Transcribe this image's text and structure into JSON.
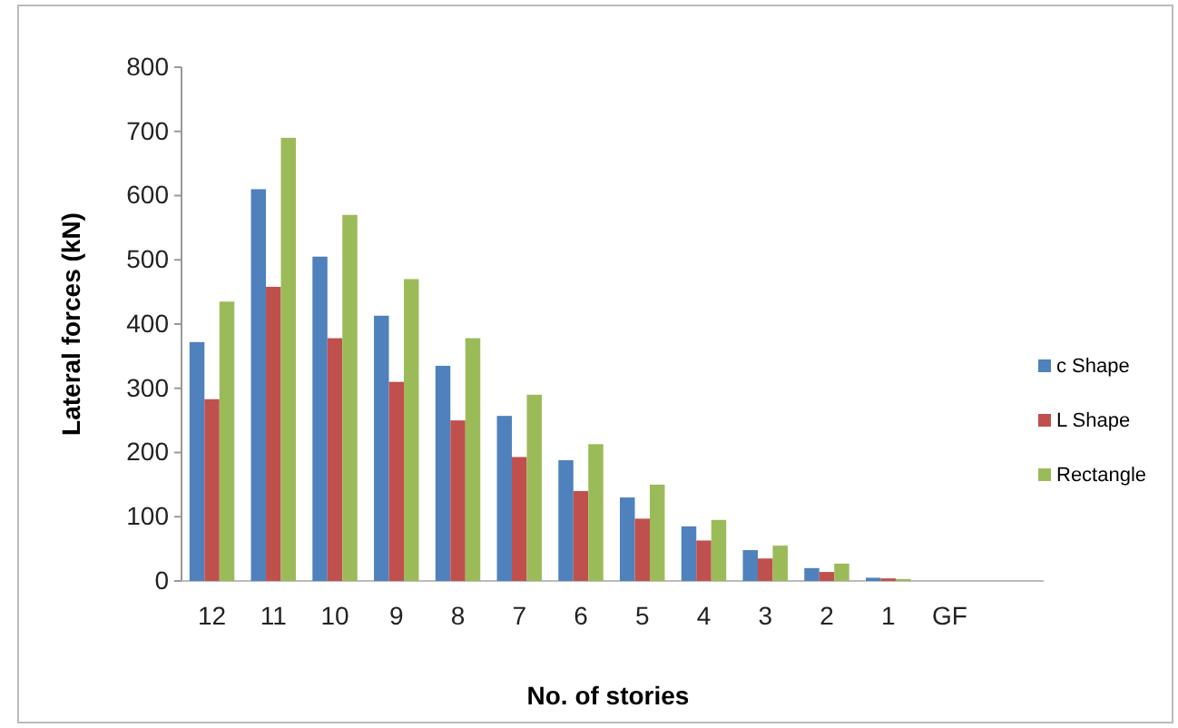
{
  "chart_data": {
    "type": "bar",
    "xlabel": "No. of stories",
    "ylabel": "Lateral forces (kN)",
    "categories": [
      "12",
      "11",
      "10",
      "9",
      "8",
      "7",
      "6",
      "5",
      "4",
      "3",
      "2",
      "1",
      "GF"
    ],
    "series": [
      {
        "name": "c Shape",
        "color": "#4f81bd",
        "values": [
          372,
          610,
          505,
          413,
          335,
          257,
          188,
          130,
          85,
          48,
          20,
          5,
          0
        ]
      },
      {
        "name": "L Shape",
        "color": "#c0504d",
        "values": [
          283,
          458,
          378,
          310,
          250,
          193,
          140,
          97,
          63,
          35,
          14,
          4,
          0
        ]
      },
      {
        "name": "Rectangle",
        "color": "#9bbb59",
        "values": [
          435,
          690,
          570,
          470,
          378,
          290,
          213,
          150,
          95,
          55,
          27,
          3,
          0
        ]
      }
    ],
    "ylim": [
      0,
      800
    ],
    "yticks": [
      0,
      100,
      200,
      300,
      400,
      500,
      600,
      700,
      800
    ],
    "grid": false,
    "legend": "right"
  }
}
